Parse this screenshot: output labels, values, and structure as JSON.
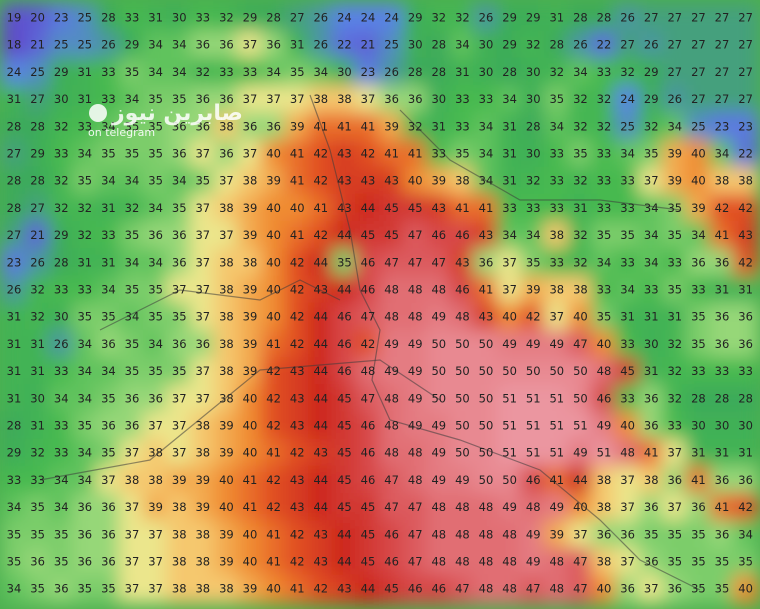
{
  "watermark": {
    "title": "صابرین نیوز",
    "subtitle": "on telegram"
  },
  "grid": [
    [
      19,
      20,
      23,
      25,
      28,
      33,
      31,
      30,
      33,
      32,
      29,
      28,
      27,
      26,
      24,
      24,
      24,
      29,
      32,
      32,
      26,
      29,
      29,
      31,
      28,
      28,
      26,
      27,
      27,
      27,
      27,
      27
    ],
    [
      18,
      21,
      25,
      25,
      26,
      29,
      34,
      34,
      36,
      36,
      37,
      36,
      31,
      26,
      22,
      21,
      25,
      30,
      28,
      34,
      30,
      29,
      32,
      28,
      26,
      22,
      27,
      26,
      27,
      27,
      27,
      27
    ],
    [
      24,
      25,
      29,
      31,
      33,
      35,
      34,
      34,
      32,
      33,
      33,
      34,
      35,
      34,
      30,
      23,
      26,
      28,
      28,
      31,
      30,
      28,
      30,
      32,
      34,
      33,
      32,
      29,
      27,
      27,
      27,
      27
    ],
    [
      31,
      27,
      30,
      31,
      33,
      34,
      35,
      35,
      36,
      36,
      37,
      37,
      37,
      38,
      38,
      37,
      36,
      36,
      30,
      33,
      33,
      34,
      30,
      35,
      32,
      32,
      24,
      29,
      26,
      27,
      27,
      27
    ],
    [
      28,
      28,
      32,
      33,
      34,
      35,
      35,
      36,
      36,
      38,
      36,
      36,
      39,
      41,
      41,
      41,
      39,
      32,
      31,
      33,
      34,
      31,
      28,
      34,
      32,
      32,
      25,
      32,
      34,
      25,
      23,
      23
    ],
    [
      27,
      29,
      33,
      34,
      35,
      35,
      35,
      36,
      37,
      36,
      37,
      40,
      41,
      42,
      43,
      42,
      41,
      41,
      33,
      35,
      34,
      31,
      30,
      33,
      35,
      33,
      34,
      35,
      39,
      40,
      34,
      22
    ],
    [
      28,
      28,
      32,
      35,
      34,
      34,
      35,
      34,
      35,
      37,
      38,
      39,
      41,
      42,
      43,
      43,
      43,
      40,
      39,
      38,
      34,
      31,
      32,
      33,
      32,
      33,
      33,
      37,
      39,
      40,
      38,
      38
    ],
    [
      28,
      27,
      32,
      32,
      31,
      32,
      34,
      35,
      37,
      38,
      39,
      40,
      40,
      41,
      43,
      44,
      45,
      45,
      43,
      41,
      41,
      33,
      33,
      33,
      31,
      33,
      33,
      34,
      35,
      39,
      42,
      42
    ],
    [
      27,
      21,
      29,
      32,
      33,
      35,
      36,
      36,
      37,
      37,
      39,
      40,
      41,
      42,
      44,
      45,
      45,
      47,
      46,
      46,
      43,
      34,
      34,
      38,
      32,
      35,
      35,
      34,
      35,
      34,
      41,
      43
    ],
    [
      23,
      26,
      28,
      31,
      31,
      34,
      34,
      36,
      37,
      38,
      38,
      40,
      42,
      44,
      35,
      46,
      47,
      47,
      47,
      43,
      36,
      37,
      35,
      33,
      32,
      34,
      33,
      34,
      33,
      36,
      36,
      42
    ],
    [
      26,
      32,
      33,
      33,
      34,
      35,
      35,
      37,
      37,
      38,
      39,
      40,
      42,
      43,
      44,
      46,
      48,
      48,
      48,
      46,
      41,
      37,
      39,
      38,
      38,
      33,
      34,
      33,
      35,
      33,
      31,
      31
    ],
    [
      31,
      32,
      30,
      35,
      35,
      34,
      35,
      35,
      37,
      38,
      39,
      40,
      42,
      44,
      46,
      47,
      48,
      48,
      49,
      48,
      43,
      40,
      42,
      37,
      40,
      35,
      31,
      31,
      31,
      35,
      36,
      36
    ],
    [
      31,
      31,
      26,
      34,
      36,
      35,
      34,
      36,
      36,
      38,
      39,
      41,
      42,
      44,
      46,
      42,
      49,
      49,
      50,
      50,
      50,
      49,
      49,
      49,
      47,
      40,
      33,
      30,
      32,
      35,
      36,
      36
    ],
    [
      31,
      31,
      33,
      34,
      34,
      35,
      35,
      35,
      37,
      38,
      39,
      42,
      43,
      44,
      46,
      48,
      49,
      49,
      50,
      50,
      50,
      50,
      50,
      50,
      50,
      48,
      45,
      31,
      32,
      33,
      33,
      33
    ],
    [
      31,
      30,
      34,
      34,
      35,
      36,
      36,
      37,
      37,
      38,
      40,
      42,
      43,
      44,
      45,
      47,
      48,
      49,
      50,
      50,
      50,
      51,
      51,
      51,
      50,
      46,
      33,
      36,
      32,
      28,
      28,
      28
    ],
    [
      28,
      31,
      33,
      35,
      36,
      36,
      37,
      37,
      38,
      39,
      40,
      42,
      43,
      44,
      45,
      46,
      48,
      49,
      49,
      50,
      50,
      51,
      51,
      51,
      51,
      49,
      40,
      36,
      33,
      30,
      30,
      30
    ],
    [
      29,
      32,
      33,
      34,
      35,
      37,
      38,
      37,
      38,
      39,
      40,
      41,
      42,
      43,
      45,
      46,
      48,
      48,
      49,
      50,
      50,
      51,
      51,
      51,
      49,
      51,
      48,
      41,
      37,
      31,
      31,
      31
    ],
    [
      33,
      33,
      34,
      34,
      37,
      38,
      38,
      39,
      39,
      40,
      41,
      42,
      43,
      44,
      45,
      46,
      47,
      48,
      49,
      49,
      50,
      50,
      46,
      41,
      44,
      38,
      37,
      38,
      36,
      41,
      36,
      36
    ],
    [
      34,
      35,
      34,
      36,
      36,
      37,
      39,
      38,
      39,
      40,
      41,
      42,
      43,
      44,
      45,
      45,
      47,
      47,
      48,
      48,
      48,
      49,
      48,
      49,
      40,
      38,
      37,
      36,
      37,
      36,
      41,
      42
    ],
    [
      35,
      35,
      35,
      36,
      36,
      37,
      37,
      38,
      38,
      39,
      40,
      41,
      42,
      43,
      44,
      45,
      46,
      47,
      48,
      48,
      48,
      48,
      49,
      39,
      37,
      36,
      36,
      35,
      35,
      35,
      36,
      34
    ],
    [
      35,
      36,
      35,
      36,
      36,
      37,
      37,
      38,
      38,
      39,
      40,
      41,
      42,
      43,
      44,
      45,
      46,
      47,
      48,
      48,
      48,
      48,
      49,
      48,
      47,
      38,
      37,
      36,
      35,
      35,
      35,
      35
    ],
    [
      34,
      35,
      36,
      35,
      35,
      37,
      37,
      38,
      38,
      38,
      39,
      40,
      41,
      42,
      43,
      44,
      45,
      46,
      46,
      47,
      48,
      48,
      47,
      48,
      47,
      40,
      36,
      37,
      36,
      35,
      35,
      40
    ]
  ]
}
